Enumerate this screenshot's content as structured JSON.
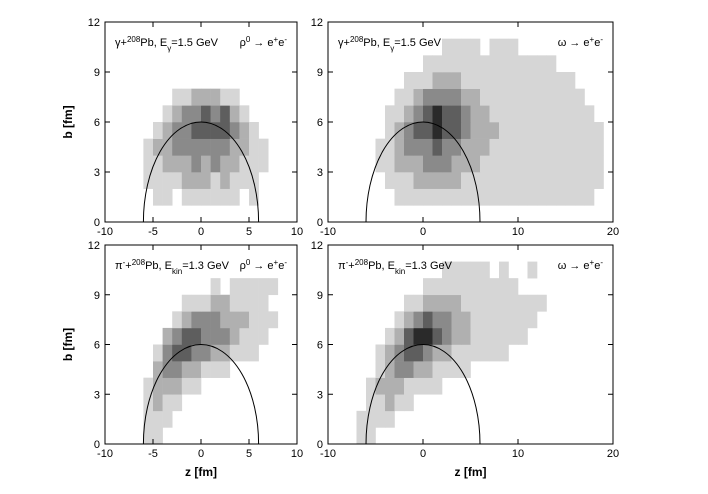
{
  "chart_data": [
    {
      "type": "heatmap",
      "label": [
        {
          "text": "γ+"
        },
        {
          "text": "208",
          "pos": "sup"
        },
        {
          "text": "Pb, E"
        },
        {
          "text": "γ",
          "pos": "sub"
        },
        {
          "text": "=1.5 GeV"
        }
      ],
      "reaction": [
        {
          "text": "ρ"
        },
        {
          "text": "0",
          "pos": "sup"
        },
        {
          "text": " → e"
        },
        {
          "text": "+",
          "pos": "sup"
        },
        {
          "text": "e"
        },
        {
          "text": "-",
          "pos": "sup"
        }
      ],
      "ylabel": "b [fm]",
      "xlim": [
        -10,
        10
      ],
      "ylim": [
        0,
        12
      ],
      "xticks": [
        -10,
        -5,
        0,
        5,
        10
      ],
      "yticks": [
        0,
        3,
        6,
        9,
        12
      ],
      "circle_radius": 6,
      "colors": [
        "#ffffff",
        "#d6d6d6",
        "#b0b0b0",
        "#8a8a8a",
        "#5e5e5e",
        "#2a2a2a"
      ],
      "xbins": [
        -6,
        -5,
        -4,
        -3,
        -2,
        -1,
        0,
        1,
        2,
        3,
        4,
        5,
        6,
        7
      ],
      "ybins": [
        1,
        2,
        3,
        4,
        5,
        6,
        7,
        8
      ],
      "z": [
        [
          0,
          1,
          1,
          0,
          1,
          1,
          1,
          1,
          1,
          1,
          0,
          1,
          0
        ],
        [
          1,
          1,
          1,
          1,
          2,
          2,
          2,
          1,
          2,
          1,
          1,
          1,
          0
        ],
        [
          1,
          1,
          2,
          2,
          2,
          3,
          2,
          3,
          2,
          2,
          1,
          1,
          1
        ],
        [
          1,
          2,
          2,
          3,
          3,
          3,
          3,
          3,
          3,
          2,
          2,
          1,
          1
        ],
        [
          0,
          1,
          2,
          3,
          3,
          4,
          4,
          4,
          4,
          3,
          2,
          1,
          0
        ],
        [
          0,
          0,
          1,
          2,
          3,
          3,
          4,
          3,
          4,
          2,
          1,
          0,
          0
        ],
        [
          0,
          0,
          0,
          1,
          1,
          2,
          2,
          2,
          1,
          1,
          0,
          0,
          0
        ]
      ]
    },
    {
      "type": "heatmap",
      "label": [
        {
          "text": "γ+"
        },
        {
          "text": "208",
          "pos": "sup"
        },
        {
          "text": "Pb, E"
        },
        {
          "text": "γ",
          "pos": "sub"
        },
        {
          "text": "=1.5 GeV"
        }
      ],
      "reaction": [
        {
          "text": "ω → e"
        },
        {
          "text": "+",
          "pos": "sup"
        },
        {
          "text": "e"
        },
        {
          "text": "-",
          "pos": "sup"
        }
      ],
      "xlim": [
        -10,
        20
      ],
      "ylim": [
        0,
        12
      ],
      "xticks": [
        -10,
        0,
        10,
        20
      ],
      "yticks": [
        0,
        3,
        6,
        9,
        12
      ],
      "circle_radius": 6,
      "colors": [
        "#ffffff",
        "#d6d6d6",
        "#b0b0b0",
        "#8a8a8a",
        "#5e5e5e",
        "#2a2a2a"
      ],
      "xbins": [
        -6,
        -5,
        -4,
        -3,
        -2,
        -1,
        0,
        1,
        2,
        3,
        4,
        5,
        6,
        7,
        8,
        9,
        10,
        11,
        12,
        13,
        14,
        15,
        16,
        17,
        18,
        19
      ],
      "ybins": [
        1,
        2,
        3,
        4,
        5,
        6,
        7,
        8,
        9,
        10,
        11
      ],
      "z": [
        [
          0,
          0,
          0,
          1,
          1,
          1,
          1,
          1,
          1,
          1,
          1,
          1,
          1,
          1,
          1,
          1,
          1,
          1,
          1,
          1,
          1,
          1,
          1,
          1,
          0
        ],
        [
          0,
          0,
          1,
          1,
          1,
          2,
          2,
          2,
          2,
          2,
          1,
          1,
          1,
          1,
          1,
          1,
          1,
          1,
          1,
          1,
          1,
          1,
          1,
          1,
          1
        ],
        [
          0,
          1,
          1,
          2,
          2,
          2,
          3,
          3,
          3,
          2,
          2,
          2,
          1,
          1,
          1,
          1,
          1,
          1,
          1,
          1,
          1,
          1,
          1,
          1,
          1
        ],
        [
          0,
          1,
          1,
          2,
          3,
          3,
          3,
          4,
          3,
          3,
          2,
          2,
          2,
          1,
          1,
          1,
          1,
          1,
          1,
          1,
          1,
          1,
          1,
          1,
          1
        ],
        [
          0,
          0,
          1,
          2,
          3,
          4,
          4,
          5,
          4,
          4,
          3,
          2,
          2,
          2,
          1,
          1,
          1,
          1,
          1,
          1,
          1,
          1,
          1,
          1,
          1
        ],
        [
          0,
          0,
          1,
          1,
          2,
          3,
          4,
          5,
          4,
          4,
          3,
          2,
          2,
          1,
          1,
          1,
          1,
          1,
          1,
          1,
          1,
          1,
          1,
          1,
          0
        ],
        [
          0,
          0,
          0,
          1,
          1,
          2,
          3,
          3,
          3,
          3,
          2,
          2,
          1,
          1,
          1,
          1,
          1,
          1,
          1,
          1,
          1,
          1,
          1,
          0,
          0
        ],
        [
          0,
          0,
          0,
          0,
          1,
          1,
          1,
          2,
          2,
          2,
          1,
          1,
          1,
          1,
          1,
          1,
          1,
          1,
          1,
          1,
          1,
          1,
          0,
          0,
          0
        ],
        [
          0,
          0,
          0,
          0,
          0,
          0,
          1,
          1,
          1,
          1,
          1,
          1,
          1,
          1,
          1,
          1,
          1,
          1,
          1,
          1,
          0,
          0,
          0,
          0,
          0
        ],
        [
          0,
          0,
          0,
          0,
          0,
          0,
          0,
          0,
          1,
          1,
          1,
          1,
          0,
          1,
          1,
          1,
          0,
          0,
          0,
          0,
          0,
          0,
          0,
          0,
          0
        ]
      ]
    },
    {
      "type": "heatmap",
      "label": [
        {
          "text": "π"
        },
        {
          "text": "-",
          "pos": "sup"
        },
        {
          "text": "+"
        },
        {
          "text": "208",
          "pos": "sup"
        },
        {
          "text": "Pb, E"
        },
        {
          "text": "kin",
          "pos": "sub"
        },
        {
          "text": "=1.3 GeV"
        }
      ],
      "reaction": [
        {
          "text": "ρ"
        },
        {
          "text": "0",
          "pos": "sup"
        },
        {
          "text": " → e"
        },
        {
          "text": "+",
          "pos": "sup"
        },
        {
          "text": "e"
        },
        {
          "text": "-",
          "pos": "sup"
        }
      ],
      "xlabel": "z [fm]",
      "ylabel": "b [fm]",
      "xlim": [
        -10,
        10
      ],
      "ylim": [
        0,
        12
      ],
      "xticks": [
        -10,
        -5,
        0,
        5,
        10
      ],
      "yticks": [
        0,
        3,
        6,
        9,
        12
      ],
      "circle_radius": 6,
      "colors": [
        "#ffffff",
        "#d6d6d6",
        "#b0b0b0",
        "#8a8a8a",
        "#5e5e5e",
        "#2a2a2a"
      ],
      "xbins": [
        -6,
        -5,
        -4,
        -3,
        -2,
        -1,
        0,
        1,
        2,
        3,
        4,
        5,
        6,
        7,
        8
      ],
      "ybins": [
        0,
        1,
        2,
        3,
        4,
        5,
        6,
        7,
        8,
        9,
        10
      ],
      "z": [
        [
          1,
          1,
          0,
          0,
          0,
          0,
          0,
          0,
          0,
          0,
          0,
          0,
          0,
          0
        ],
        [
          1,
          1,
          1,
          0,
          0,
          0,
          0,
          0,
          0,
          0,
          0,
          0,
          0,
          0
        ],
        [
          1,
          2,
          1,
          1,
          0,
          0,
          0,
          0,
          0,
          0,
          0,
          0,
          0,
          0
        ],
        [
          1,
          2,
          2,
          2,
          1,
          1,
          0,
          0,
          0,
          0,
          0,
          0,
          0,
          0
        ],
        [
          0,
          2,
          3,
          3,
          2,
          2,
          1,
          1,
          1,
          0,
          0,
          0,
          0,
          0
        ],
        [
          0,
          1,
          3,
          4,
          4,
          3,
          3,
          2,
          2,
          1,
          1,
          1,
          0,
          0
        ],
        [
          0,
          0,
          2,
          3,
          4,
          4,
          3,
          3,
          3,
          2,
          1,
          1,
          1,
          0
        ],
        [
          0,
          0,
          0,
          1,
          2,
          3,
          3,
          3,
          2,
          2,
          2,
          1,
          1,
          1
        ],
        [
          0,
          0,
          0,
          0,
          1,
          1,
          1,
          2,
          2,
          1,
          1,
          1,
          1,
          0
        ],
        [
          0,
          0,
          0,
          0,
          0,
          0,
          0,
          1,
          0,
          1,
          1,
          1,
          1,
          1
        ]
      ]
    },
    {
      "type": "heatmap",
      "label": [
        {
          "text": "π"
        },
        {
          "text": "-",
          "pos": "sup"
        },
        {
          "text": "+"
        },
        {
          "text": "208",
          "pos": "sup"
        },
        {
          "text": "Pb, E"
        },
        {
          "text": "kin",
          "pos": "sub"
        },
        {
          "text": "=1.3 GeV"
        }
      ],
      "reaction": [
        {
          "text": "ω → e"
        },
        {
          "text": "+",
          "pos": "sup"
        },
        {
          "text": "e"
        },
        {
          "text": "-",
          "pos": "sup"
        }
      ],
      "xlabel": "z [fm]",
      "xlim": [
        -10,
        20
      ],
      "ylim": [
        0,
        12
      ],
      "xticks": [
        -10,
        0,
        10,
        20
      ],
      "yticks": [
        0,
        3,
        6,
        9,
        12
      ],
      "circle_radius": 6,
      "colors": [
        "#ffffff",
        "#d6d6d6",
        "#b0b0b0",
        "#8a8a8a",
        "#5e5e5e",
        "#2a2a2a"
      ],
      "xbins": [
        -7,
        -6,
        -5,
        -4,
        -3,
        -2,
        -1,
        0,
        1,
        2,
        3,
        4,
        5,
        6,
        7,
        8,
        9,
        10,
        11,
        12,
        13,
        14,
        15,
        16
      ],
      "ybins": [
        0,
        1,
        2,
        3,
        4,
        5,
        6,
        7,
        8,
        9,
        10,
        11
      ],
      "z": [
        [
          1,
          1,
          0,
          0,
          0,
          0,
          0,
          0,
          0,
          0,
          0,
          0,
          0,
          0,
          0,
          0,
          0,
          0,
          0,
          0,
          0,
          0,
          0
        ],
        [
          1,
          1,
          1,
          1,
          0,
          0,
          0,
          0,
          0,
          0,
          0,
          0,
          0,
          0,
          0,
          0,
          0,
          0,
          0,
          0,
          0,
          0,
          0
        ],
        [
          0,
          1,
          1,
          2,
          1,
          1,
          0,
          0,
          0,
          0,
          0,
          0,
          0,
          0,
          0,
          0,
          0,
          0,
          0,
          0,
          0,
          0,
          0
        ],
        [
          0,
          1,
          2,
          2,
          2,
          1,
          1,
          1,
          1,
          0,
          0,
          0,
          0,
          0,
          0,
          0,
          0,
          0,
          0,
          0,
          0,
          0,
          0
        ],
        [
          0,
          0,
          1,
          2,
          3,
          3,
          2,
          2,
          1,
          1,
          1,
          1,
          0,
          0,
          0,
          0,
          0,
          0,
          0,
          0,
          0,
          0,
          0
        ],
        [
          0,
          0,
          1,
          2,
          3,
          4,
          4,
          3,
          2,
          2,
          1,
          1,
          1,
          1,
          1,
          1,
          0,
          0,
          0,
          0,
          0,
          0,
          0
        ],
        [
          0,
          0,
          0,
          1,
          2,
          4,
          5,
          5,
          4,
          3,
          2,
          2,
          1,
          1,
          1,
          1,
          1,
          1,
          0,
          0,
          0,
          0,
          0
        ],
        [
          0,
          0,
          0,
          0,
          1,
          2,
          3,
          4,
          3,
          3,
          2,
          2,
          1,
          1,
          1,
          1,
          1,
          1,
          1,
          0,
          0,
          0,
          0
        ],
        [
          0,
          0,
          0,
          0,
          0,
          1,
          1,
          2,
          2,
          2,
          2,
          1,
          1,
          1,
          1,
          1,
          1,
          1,
          1,
          1,
          0,
          0,
          0
        ],
        [
          0,
          0,
          0,
          0,
          0,
          0,
          0,
          1,
          1,
          1,
          1,
          1,
          1,
          1,
          1,
          1,
          1,
          0,
          0,
          0,
          0,
          0,
          0
        ],
        [
          0,
          0,
          0,
          0,
          0,
          0,
          0,
          0,
          0,
          1,
          1,
          1,
          1,
          1,
          0,
          1,
          0,
          0,
          1,
          0,
          0,
          0,
          0
        ]
      ]
    }
  ]
}
